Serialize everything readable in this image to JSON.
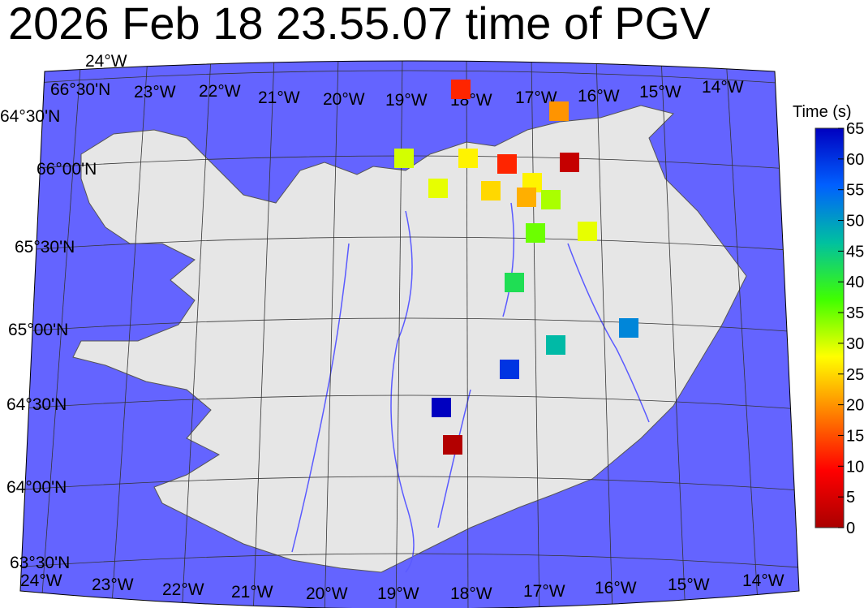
{
  "title": "2026 Feb 18 23.55.07 time of PGV",
  "colors": {
    "ocean": "#6464ff",
    "land": "#e6e6e6",
    "rivers": "#5a5aff",
    "grid": "#333333"
  },
  "map": {
    "meridian_labels_top": [
      "23°W",
      "22°W",
      "21°W",
      "20°W",
      "19°W",
      "18°W",
      "17°W",
      "16°W",
      "15°W",
      "14°W"
    ],
    "meridian_labels_bottom": [
      "24°W",
      "23°W",
      "22°W",
      "21°W",
      "20°W",
      "19°W",
      "18°W",
      "17°W",
      "16°W",
      "15°W",
      "14°W"
    ],
    "corner_labels": [
      "66°30'N",
      "64°30'N",
      "24°W"
    ],
    "parallel_labels": [
      "66°00'N",
      "65°30'N",
      "65°00'N",
      "64°30'N",
      "64°00'N",
      "63°30'N"
    ]
  },
  "stations": [
    {
      "time": 12
    },
    {
      "time": 20
    },
    {
      "time": 30
    },
    {
      "time": 27
    },
    {
      "time": 12
    },
    {
      "time": 3
    },
    {
      "time": 29
    },
    {
      "time": 25
    },
    {
      "time": 27
    },
    {
      "time": 22
    },
    {
      "time": 32
    },
    {
      "time": 35
    },
    {
      "time": 29
    },
    {
      "time": 42
    },
    {
      "time": 52
    },
    {
      "time": 47
    },
    {
      "time": 60
    },
    {
      "time": 65
    },
    {
      "time": 1
    }
  ],
  "colorbar": {
    "label": "Time (s)",
    "min": 0,
    "max": 65,
    "ticks": [
      "0",
      "5",
      "10",
      "15",
      "20",
      "25",
      "30",
      "35",
      "40",
      "45",
      "50",
      "55",
      "60",
      "65"
    ],
    "palette": [
      "#aa0000",
      "#ff0000",
      "#ff8000",
      "#ffff00",
      "#40ff00",
      "#00c0a0",
      "#0060ff",
      "#0000c0"
    ]
  }
}
